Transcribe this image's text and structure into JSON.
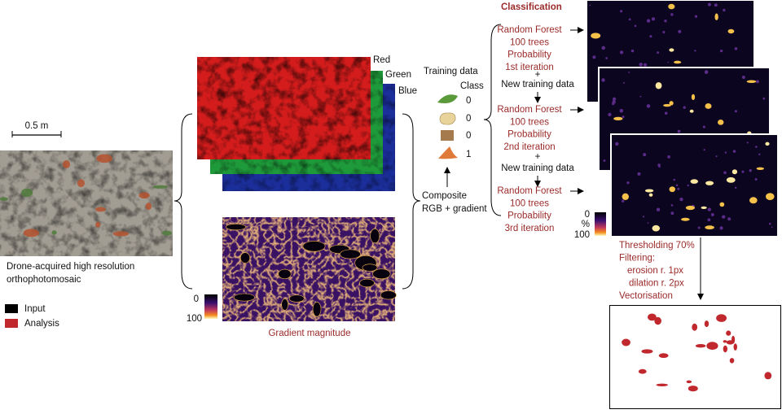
{
  "input": {
    "scale_label": "0.5 m",
    "caption": [
      "Drone-acquired high resolution",
      "orthophotomosaic"
    ]
  },
  "legend": [
    {
      "label": "Input",
      "color": "#000000"
    },
    {
      "label": "Analysis",
      "color": "#c0282d"
    }
  ],
  "bands": [
    "Red",
    "Green",
    "Blue"
  ],
  "gradient": {
    "colorbar": [
      "0",
      "100"
    ],
    "label": "Gradient magnitude"
  },
  "training": {
    "title": "Training data",
    "class_header": "Class",
    "classes": [
      "0",
      "0",
      "0",
      "1"
    ],
    "composite": [
      "Composite",
      "RGB + gradient"
    ]
  },
  "classification": {
    "title": "Classification",
    "iterations": [
      [
        "Random Forest",
        "100 trees",
        "Probability",
        "1st iteration"
      ],
      [
        "Random Forest",
        "100 trees",
        "Probability",
        "2nd iteration"
      ],
      [
        "Random Forest",
        "100 trees",
        "Probability",
        "3rd iteration"
      ]
    ],
    "new_data": [
      [
        "+",
        "New training data"
      ],
      [
        "+",
        "New training data"
      ]
    ],
    "colorbar": [
      "0",
      "%",
      "100"
    ]
  },
  "postprocessing": [
    "Thresholding 70%",
    "Filtering:",
    "erosion  r. 1px",
    "dilation  r. 2px",
    "Vectorisation"
  ]
}
